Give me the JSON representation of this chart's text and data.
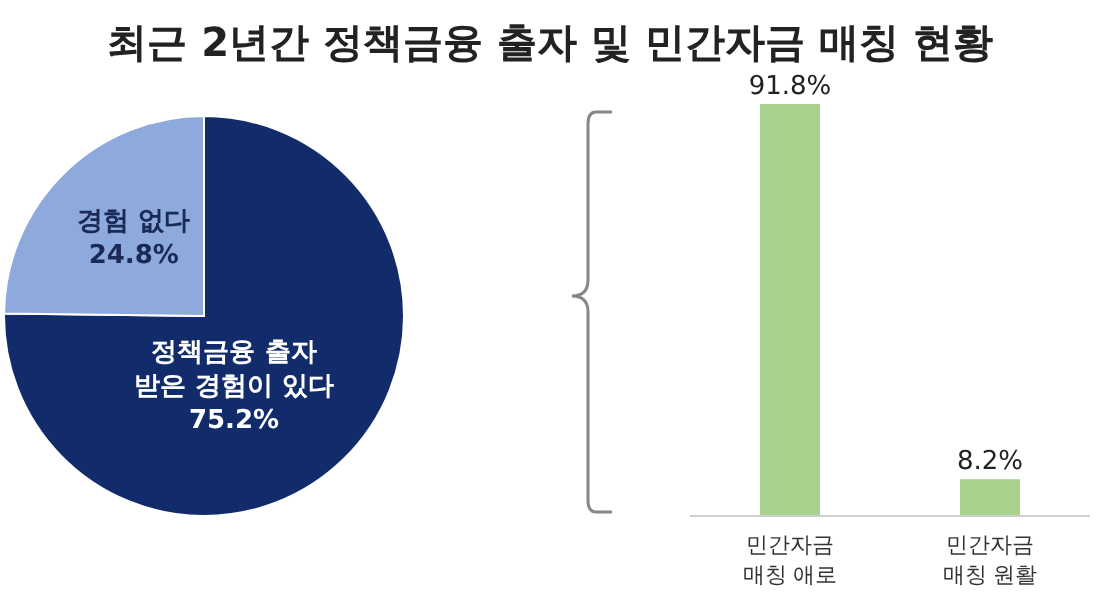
{
  "chart_data": [
    {
      "type": "pie",
      "title": "최근 2년간 정책금융 출자 및 민간자금 매칭 현황",
      "categories": [
        "정책금융 출자\n받은 경험이 있다",
        "경험 없다"
      ],
      "values": [
        75.2,
        24.8
      ],
      "colors": [
        "#112b6b",
        "#8eaadc"
      ],
      "value_labels": [
        "75.2%",
        "24.8%"
      ]
    },
    {
      "type": "bar",
      "categories": [
        "민간자금\n매칭 애로",
        "민간자금\n매칭 원활"
      ],
      "values": [
        91.8,
        8.2
      ],
      "color": "#a8d18d",
      "tick_labels": "x",
      "value_labels": [
        "91.8%",
        "8.2%"
      ]
    }
  ]
}
